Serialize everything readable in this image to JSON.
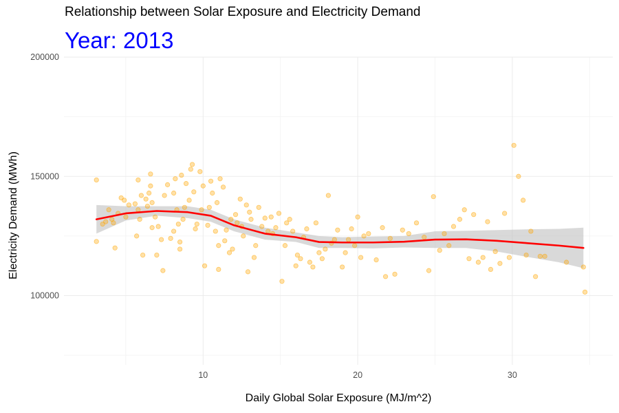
{
  "chart_data": {
    "type": "scatter",
    "title": "Relationship between Solar Exposure and Electricity Demand",
    "subtitle": "Year: 2013",
    "xlabel": "Daily Global Solar Exposure (MJ/m^2)",
    "ylabel": "Electricity Demand (MWh)",
    "xlim": [
      1.0,
      36.5
    ],
    "ylim": [
      71000,
      200000
    ],
    "x_ticks": [
      10,
      20,
      30
    ],
    "x_tick_labels": [
      "10",
      "20",
      "30"
    ],
    "y_ticks": [
      100000,
      150000,
      200000
    ],
    "y_tick_labels": [
      "100000",
      "150000",
      "200000"
    ],
    "grid": true,
    "colors": {
      "points": "#ffa500",
      "smooth_line": "#ff0000",
      "confidence_band": "#bfbfbf",
      "subtitle": "#0000ff"
    },
    "series": [
      {
        "kind": "points",
        "points": [
          [
            3.1,
            148500
          ],
          [
            3.1,
            122700
          ],
          [
            3.5,
            130000
          ],
          [
            3.7,
            131000
          ],
          [
            3.9,
            136000
          ],
          [
            4.1,
            132000
          ],
          [
            4.2,
            130500
          ],
          [
            4.3,
            120000
          ],
          [
            4.5,
            134500
          ],
          [
            4.7,
            141000
          ],
          [
            4.9,
            140000
          ],
          [
            5.0,
            133000
          ],
          [
            5.2,
            138000
          ],
          [
            5.6,
            138500
          ],
          [
            5.7,
            125000
          ],
          [
            5.8,
            148500
          ],
          [
            5.8,
            136000
          ],
          [
            5.9,
            132000
          ],
          [
            6.0,
            142000
          ],
          [
            6.1,
            117000
          ],
          [
            6.3,
            140500
          ],
          [
            6.4,
            137500
          ],
          [
            6.5,
            143000
          ],
          [
            6.6,
            151000
          ],
          [
            6.6,
            146000
          ],
          [
            6.7,
            139000
          ],
          [
            6.7,
            128500
          ],
          [
            6.9,
            133000
          ],
          [
            7.0,
            117000
          ],
          [
            7.1,
            129000
          ],
          [
            7.3,
            123500
          ],
          [
            7.4,
            110500
          ],
          [
            7.5,
            142000
          ],
          [
            7.7,
            146500
          ],
          [
            7.9,
            124000
          ],
          [
            8.1,
            127000
          ],
          [
            8.1,
            143000
          ],
          [
            8.2,
            149000
          ],
          [
            8.3,
            136000
          ],
          [
            8.4,
            130000
          ],
          [
            8.5,
            122500
          ],
          [
            8.5,
            119500
          ],
          [
            8.6,
            150500
          ],
          [
            8.7,
            132000
          ],
          [
            8.8,
            137000
          ],
          [
            8.9,
            147000
          ],
          [
            9.1,
            140000
          ],
          [
            9.2,
            153000
          ],
          [
            9.3,
            155000
          ],
          [
            9.4,
            143500
          ],
          [
            9.5,
            128000
          ],
          [
            9.6,
            130000
          ],
          [
            9.8,
            152000
          ],
          [
            9.9,
            136000
          ],
          [
            10.0,
            146000
          ],
          [
            10.1,
            112500
          ],
          [
            10.3,
            129500
          ],
          [
            10.4,
            137000
          ],
          [
            10.5,
            148000
          ],
          [
            10.6,
            143000
          ],
          [
            10.8,
            127000
          ],
          [
            10.9,
            139000
          ],
          [
            11.0,
            121000
          ],
          [
            11.0,
            111000
          ],
          [
            11.1,
            149000
          ],
          [
            11.3,
            145500
          ],
          [
            11.4,
            123000
          ],
          [
            11.5,
            127500
          ],
          [
            11.7,
            118000
          ],
          [
            11.8,
            132000
          ],
          [
            11.9,
            119500
          ],
          [
            12.1,
            134000
          ],
          [
            12.2,
            130500
          ],
          [
            12.4,
            140500
          ],
          [
            12.5,
            129000
          ],
          [
            12.6,
            125000
          ],
          [
            12.8,
            138000
          ],
          [
            12.9,
            110000
          ],
          [
            13.0,
            135000
          ],
          [
            13.1,
            132000
          ],
          [
            13.3,
            116000
          ],
          [
            13.4,
            121000
          ],
          [
            13.6,
            137000
          ],
          [
            13.8,
            129000
          ],
          [
            14.0,
            132500
          ],
          [
            14.2,
            127000
          ],
          [
            14.4,
            133000
          ],
          [
            14.5,
            126000
          ],
          [
            14.7,
            128500
          ],
          [
            14.9,
            134500
          ],
          [
            15.1,
            106000
          ],
          [
            15.3,
            121000
          ],
          [
            15.4,
            130500
          ],
          [
            15.6,
            132000
          ],
          [
            15.8,
            127000
          ],
          [
            16.0,
            112500
          ],
          [
            16.1,
            117000
          ],
          [
            16.3,
            115500
          ],
          [
            16.5,
            124500
          ],
          [
            16.7,
            128000
          ],
          [
            16.9,
            114000
          ],
          [
            17.1,
            112000
          ],
          [
            17.3,
            130500
          ],
          [
            17.5,
            118000
          ],
          [
            17.7,
            115500
          ],
          [
            17.9,
            119500
          ],
          [
            18.1,
            142000
          ],
          [
            18.3,
            122000
          ],
          [
            18.5,
            123500
          ],
          [
            18.7,
            127500
          ],
          [
            19.0,
            112000
          ],
          [
            19.2,
            118000
          ],
          [
            19.4,
            123500
          ],
          [
            19.6,
            128000
          ],
          [
            19.8,
            121000
          ],
          [
            20.0,
            133000
          ],
          [
            20.2,
            116000
          ],
          [
            20.4,
            125000
          ],
          [
            20.7,
            126000
          ],
          [
            21.2,
            115000
          ],
          [
            21.6,
            128500
          ],
          [
            21.8,
            108000
          ],
          [
            22.1,
            124000
          ],
          [
            22.4,
            109000
          ],
          [
            22.9,
            127500
          ],
          [
            23.3,
            126000
          ],
          [
            23.8,
            130500
          ],
          [
            24.3,
            124500
          ],
          [
            24.6,
            110500
          ],
          [
            24.9,
            141500
          ],
          [
            25.3,
            119000
          ],
          [
            25.6,
            126000
          ],
          [
            25.9,
            121000
          ],
          [
            26.2,
            129000
          ],
          [
            26.6,
            132000
          ],
          [
            26.9,
            136000
          ],
          [
            27.2,
            115500
          ],
          [
            27.5,
            134000
          ],
          [
            27.8,
            114000
          ],
          [
            28.1,
            116000
          ],
          [
            28.4,
            131000
          ],
          [
            28.6,
            111000
          ],
          [
            28.9,
            118500
          ],
          [
            29.2,
            113500
          ],
          [
            29.5,
            134500
          ],
          [
            29.8,
            116000
          ],
          [
            30.1,
            163000
          ],
          [
            30.4,
            150000
          ],
          [
            30.7,
            140000
          ],
          [
            30.9,
            117000
          ],
          [
            31.2,
            127000
          ],
          [
            31.5,
            108000
          ],
          [
            31.8,
            116500
          ],
          [
            32.1,
            116500
          ],
          [
            33.5,
            114000
          ],
          [
            34.6,
            112000
          ],
          [
            34.7,
            101500
          ]
        ]
      },
      {
        "kind": "smooth",
        "name": "",
        "line": [
          [
            3.1,
            132000
          ],
          [
            5,
            134500
          ],
          [
            7,
            135500
          ],
          [
            9,
            135000
          ],
          [
            10.5,
            133500
          ],
          [
            12,
            129500
          ],
          [
            14,
            126000
          ],
          [
            16,
            124500
          ],
          [
            17.5,
            122500
          ],
          [
            19,
            122300
          ],
          [
            21,
            122300
          ],
          [
            23,
            122600
          ],
          [
            25,
            123500
          ],
          [
            27,
            123600
          ],
          [
            29,
            123000
          ],
          [
            31,
            122000
          ],
          [
            33,
            121000
          ],
          [
            34.6,
            120000
          ]
        ],
        "ci_upper": [
          [
            3.1,
            138000
          ],
          [
            5,
            137500
          ],
          [
            7,
            137500
          ],
          [
            9,
            137500
          ],
          [
            10.5,
            136000
          ],
          [
            12,
            132000
          ],
          [
            14,
            128500
          ],
          [
            16,
            126500
          ],
          [
            17.5,
            125000
          ],
          [
            19,
            124500
          ],
          [
            21,
            124800
          ],
          [
            23,
            125000
          ],
          [
            25,
            127000
          ],
          [
            27,
            127200
          ],
          [
            29,
            127500
          ],
          [
            31,
            127800
          ],
          [
            33,
            128000
          ],
          [
            34.6,
            128500
          ]
        ],
        "ci_lower": [
          [
            3.1,
            126000
          ],
          [
            5,
            131500
          ],
          [
            7,
            133500
          ],
          [
            9,
            132500
          ],
          [
            10.5,
            131000
          ],
          [
            12,
            127000
          ],
          [
            14,
            123500
          ],
          [
            16,
            122500
          ],
          [
            17.5,
            120000
          ],
          [
            19,
            120000
          ],
          [
            21,
            119800
          ],
          [
            23,
            120200
          ],
          [
            25,
            120000
          ],
          [
            27,
            120000
          ],
          [
            29,
            118500
          ],
          [
            31,
            116200
          ],
          [
            33,
            114000
          ],
          [
            34.6,
            111500
          ]
        ]
      }
    ]
  }
}
